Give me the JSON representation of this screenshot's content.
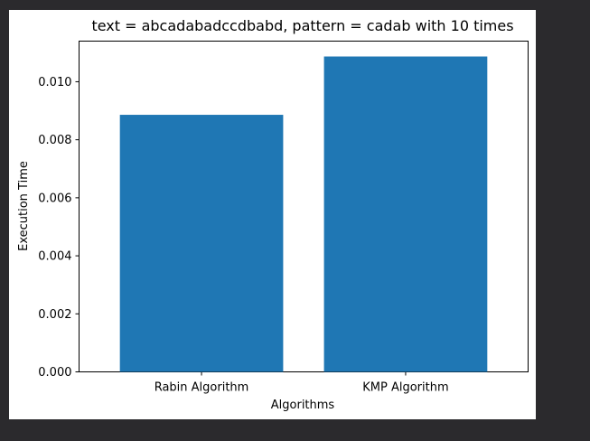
{
  "chart_data": {
    "type": "bar",
    "title": "text = abcadabadccdbabd, pattern = cadab  with 10 times",
    "xlabel": "Algorithms",
    "ylabel": "Execution Time",
    "categories": [
      "Rabin Algorithm",
      "KMP Algorithm"
    ],
    "values": [
      0.00886,
      0.01087
    ],
    "ylim": [
      0,
      0.0114
    ],
    "yticks": [
      "0.000",
      "0.002",
      "0.004",
      "0.006",
      "0.008",
      "0.010"
    ],
    "ytick_values": [
      0,
      0.002,
      0.004,
      0.006,
      0.008,
      0.01
    ],
    "bar_color": "#1f77b4",
    "grid": false,
    "legend": "none"
  }
}
